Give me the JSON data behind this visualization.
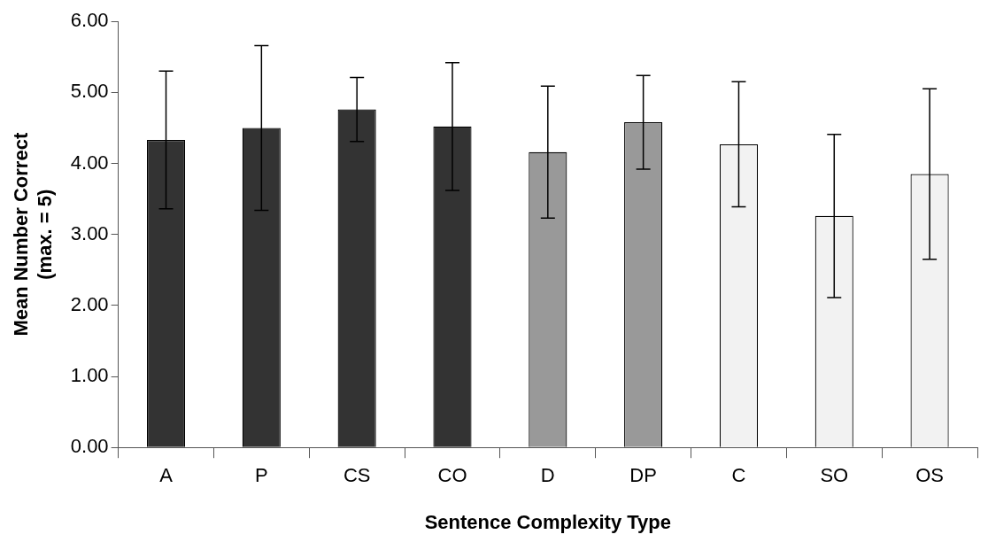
{
  "chart_data": {
    "type": "bar",
    "xlabel": "Sentence Complexity Type",
    "ylabel": "Mean Number Correct\n(max. = 5)",
    "categories": [
      "A",
      "P",
      "CS",
      "CO",
      "D",
      "DP",
      "C",
      "SO",
      "OS"
    ],
    "values": [
      4.33,
      4.5,
      4.76,
      4.52,
      4.16,
      4.58,
      4.27,
      3.26,
      3.85
    ],
    "errors": [
      0.97,
      1.16,
      0.45,
      0.9,
      0.93,
      0.66,
      0.88,
      1.15,
      1.2
    ],
    "colors": [
      "#333333",
      "#333333",
      "#333333",
      "#333333",
      "#999999",
      "#999999",
      "#f2f2f2",
      "#f2f2f2",
      "#f2f2f2"
    ],
    "ylim": [
      0,
      6
    ],
    "yticks": [
      {
        "value": 0,
        "label": "0.00"
      },
      {
        "value": 1,
        "label": "1.00"
      },
      {
        "value": 2,
        "label": "2.00"
      },
      {
        "value": 3,
        "label": "3.00"
      },
      {
        "value": 4,
        "label": "4.00"
      },
      {
        "value": 5,
        "label": "5.00"
      },
      {
        "value": 6,
        "label": "6.00"
      }
    ],
    "grid": false,
    "legend": false
  }
}
